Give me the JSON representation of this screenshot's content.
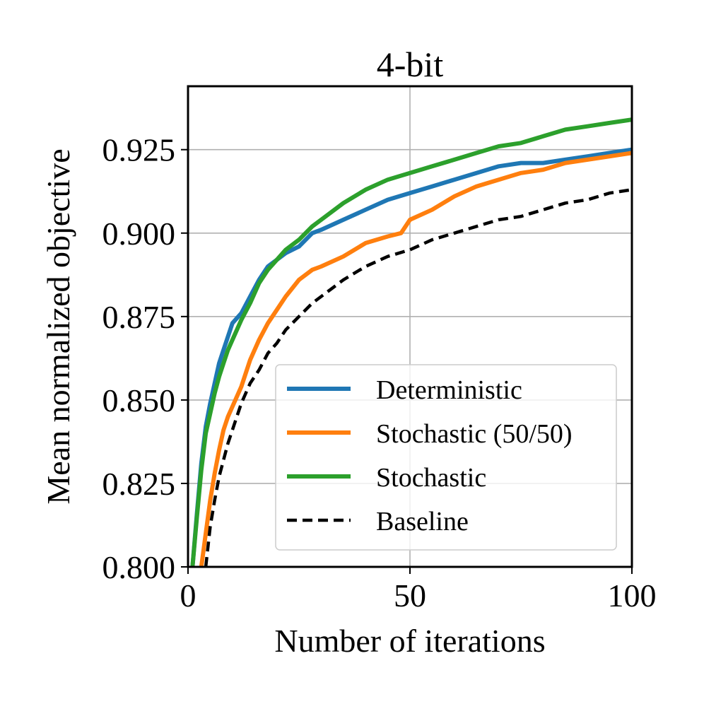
{
  "chart_data": {
    "type": "line",
    "title": "4-bit",
    "xlabel": "Number of iterations",
    "ylabel": "Mean normalized objective",
    "xlim": [
      0,
      100
    ],
    "ylim": [
      0.8,
      0.944
    ],
    "xticks": [
      0,
      50,
      100
    ],
    "xtick_labels": [
      "0",
      "50",
      "100"
    ],
    "yticks": [
      0.8,
      0.825,
      0.85,
      0.875,
      0.9,
      0.925
    ],
    "ytick_labels": [
      "0.800",
      "0.825",
      "0.850",
      "0.875",
      "0.900",
      "0.925"
    ],
    "grid": true,
    "legend_position": "lower-right",
    "series": [
      {
        "name": "Deterministic",
        "color": "#1f77b4",
        "dash": "solid",
        "x": [
          1,
          2,
          3,
          4,
          5,
          6,
          7,
          8,
          9,
          10,
          12,
          14,
          16,
          18,
          20,
          22,
          25,
          28,
          30,
          35,
          40,
          45,
          50,
          55,
          60,
          65,
          70,
          75,
          80,
          85,
          90,
          95,
          100
        ],
        "y": [
          0.8,
          0.816,
          0.831,
          0.842,
          0.849,
          0.855,
          0.861,
          0.865,
          0.869,
          0.873,
          0.876,
          0.881,
          0.886,
          0.89,
          0.892,
          0.894,
          0.896,
          0.9,
          0.901,
          0.904,
          0.907,
          0.91,
          0.912,
          0.914,
          0.916,
          0.918,
          0.92,
          0.921,
          0.921,
          0.922,
          0.923,
          0.924,
          0.925
        ]
      },
      {
        "name": "Stochastic (50/50)",
        "color": "#ff7f0e",
        "dash": "solid",
        "x": [
          3,
          4,
          5,
          6,
          7,
          8,
          9,
          10,
          12,
          14,
          16,
          18,
          20,
          22,
          25,
          28,
          30,
          35,
          40,
          45,
          48,
          50,
          55,
          60,
          65,
          70,
          75,
          80,
          85,
          90,
          95,
          100
        ],
        "y": [
          0.8,
          0.81,
          0.82,
          0.828,
          0.835,
          0.841,
          0.845,
          0.848,
          0.854,
          0.862,
          0.868,
          0.873,
          0.877,
          0.881,
          0.886,
          0.889,
          0.89,
          0.893,
          0.897,
          0.899,
          0.9,
          0.904,
          0.907,
          0.911,
          0.914,
          0.916,
          0.918,
          0.919,
          0.921,
          0.922,
          0.923,
          0.924
        ]
      },
      {
        "name": "Stochastic",
        "color": "#2ca02c",
        "dash": "solid",
        "x": [
          1,
          2,
          3,
          4,
          5,
          6,
          7,
          8,
          9,
          10,
          12,
          14,
          16,
          18,
          20,
          22,
          25,
          28,
          30,
          35,
          40,
          45,
          50,
          55,
          60,
          65,
          70,
          75,
          80,
          85,
          90,
          95,
          100
        ],
        "y": [
          0.8,
          0.815,
          0.829,
          0.84,
          0.846,
          0.852,
          0.857,
          0.861,
          0.865,
          0.868,
          0.874,
          0.879,
          0.885,
          0.889,
          0.892,
          0.895,
          0.898,
          0.902,
          0.904,
          0.909,
          0.913,
          0.916,
          0.918,
          0.92,
          0.922,
          0.924,
          0.926,
          0.927,
          0.929,
          0.931,
          0.932,
          0.933,
          0.934
        ]
      },
      {
        "name": "Baseline",
        "color": "#000000",
        "dash": "dashed",
        "x": [
          4,
          5,
          6,
          7,
          8,
          9,
          10,
          12,
          14,
          16,
          18,
          20,
          22,
          25,
          28,
          30,
          35,
          40,
          45,
          50,
          55,
          60,
          65,
          70,
          75,
          80,
          85,
          90,
          95,
          100
        ],
        "y": [
          0.8,
          0.812,
          0.82,
          0.827,
          0.832,
          0.837,
          0.841,
          0.849,
          0.855,
          0.859,
          0.864,
          0.867,
          0.871,
          0.875,
          0.879,
          0.881,
          0.886,
          0.89,
          0.893,
          0.895,
          0.898,
          0.9,
          0.902,
          0.904,
          0.905,
          0.907,
          0.909,
          0.91,
          0.912,
          0.913
        ]
      }
    ]
  }
}
